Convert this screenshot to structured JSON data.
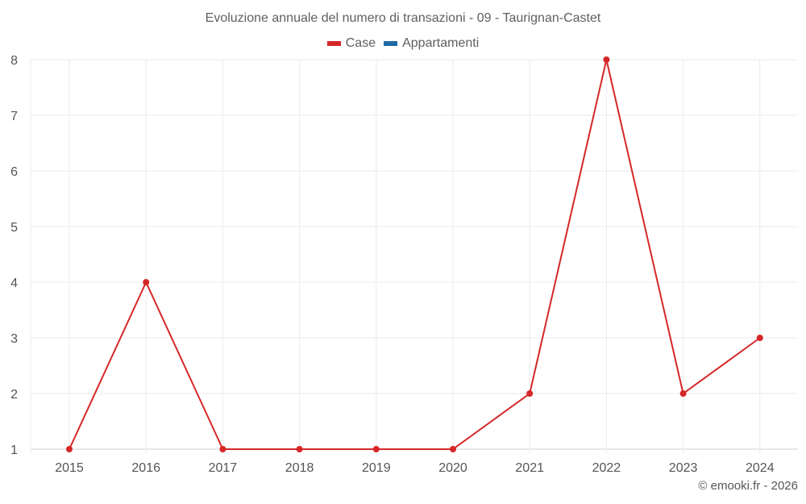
{
  "chart": {
    "title": "Evoluzione annuale del numero di transazioni - 09 - Taurignan-Castet",
    "credit": "© emooki.fr - 2026",
    "legend": [
      {
        "label": "Case",
        "color": "#d62728"
      },
      {
        "label": "Appartamenti",
        "color": "#1f6aa5"
      }
    ]
  },
  "chart_data": {
    "type": "line",
    "title": "Evoluzione annuale del numero di transazioni - 09 - Taurignan-Castet",
    "xlabel": "",
    "ylabel": "",
    "categories": [
      "2015",
      "2016",
      "2017",
      "2018",
      "2019",
      "2020",
      "2021",
      "2022",
      "2023",
      "2024"
    ],
    "series": [
      {
        "name": "Case",
        "color": "#d62728",
        "values": [
          1,
          4,
          1,
          1,
          1,
          1,
          2,
          8,
          2,
          3
        ]
      },
      {
        "name": "Appartamenti",
        "color": "#1f6aa5",
        "values": []
      }
    ],
    "ylim": [
      1,
      8
    ],
    "yticks": [
      1,
      2,
      3,
      4,
      5,
      6,
      7,
      8
    ],
    "grid": true,
    "legend_position": "top"
  }
}
